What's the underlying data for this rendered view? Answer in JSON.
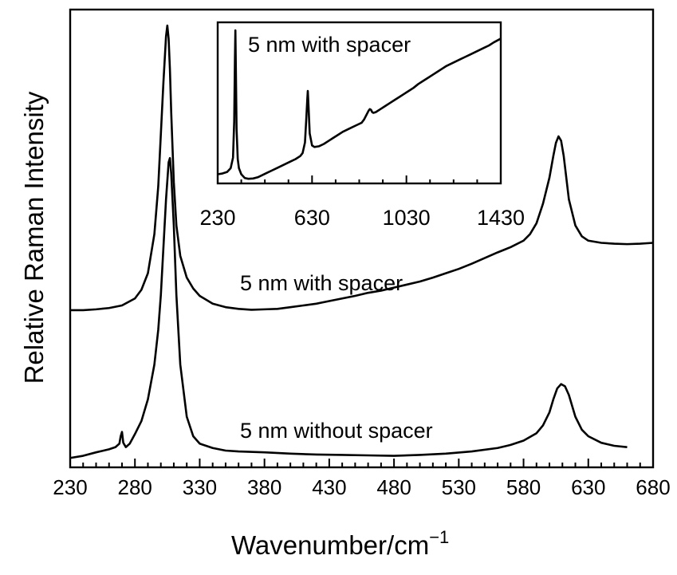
{
  "chart_data": [
    {
      "type": "line",
      "title": "",
      "xlabel": "Wavenumber/cm",
      "xlabel_sup": "−1",
      "ylabel": "Relative Raman Intensity",
      "xlim": [
        230,
        680
      ],
      "ylim": [
        0,
        1
      ],
      "y_tick_labels": false,
      "grid": false,
      "x_ticks": [
        230,
        280,
        330,
        380,
        430,
        480,
        530,
        580,
        630,
        680
      ],
      "x_tick_labels": [
        "230",
        "280",
        "330",
        "380",
        "430",
        "480",
        "530",
        "580",
        "630",
        "680"
      ],
      "series": [
        {
          "name": "5 nm with spacer",
          "x": [
            230,
            240,
            250,
            260,
            270,
            280,
            285,
            290,
            295,
            298,
            300,
            302,
            304,
            305,
            306,
            307,
            308,
            310,
            312,
            315,
            320,
            325,
            330,
            340,
            350,
            360,
            370,
            380,
            390,
            400,
            410,
            420,
            430,
            440,
            450,
            460,
            470,
            480,
            490,
            500,
            510,
            520,
            530,
            540,
            550,
            560,
            570,
            580,
            585,
            590,
            595,
            600,
            603,
            605,
            607,
            609,
            611,
            613,
            615,
            620,
            625,
            630,
            640,
            650,
            660,
            670,
            680
          ],
          "y": [
            0.345,
            0.345,
            0.347,
            0.35,
            0.356,
            0.372,
            0.392,
            0.43,
            0.52,
            0.63,
            0.75,
            0.87,
            0.975,
            1.0,
            0.97,
            0.9,
            0.8,
            0.64,
            0.54,
            0.47,
            0.42,
            0.395,
            0.378,
            0.36,
            0.352,
            0.348,
            0.346,
            0.347,
            0.348,
            0.352,
            0.356,
            0.36,
            0.366,
            0.372,
            0.378,
            0.385,
            0.39,
            0.397,
            0.404,
            0.411,
            0.42,
            0.43,
            0.44,
            0.452,
            0.465,
            0.478,
            0.49,
            0.505,
            0.52,
            0.545,
            0.59,
            0.65,
            0.7,
            0.73,
            0.745,
            0.735,
            0.7,
            0.65,
            0.6,
            0.54,
            0.515,
            0.505,
            0.5,
            0.498,
            0.497,
            0.498,
            0.5
          ]
        },
        {
          "name": "5 nm without spacer",
          "x": [
            230,
            240,
            250,
            260,
            265,
            268,
            269,
            270,
            271,
            273,
            276,
            280,
            285,
            290,
            295,
            298,
            300,
            302,
            304,
            306,
            307,
            308,
            310,
            312,
            315,
            320,
            325,
            330,
            340,
            350,
            360,
            380,
            400,
            420,
            440,
            460,
            480,
            500,
            520,
            540,
            560,
            570,
            580,
            590,
            595,
            600,
            603,
            606,
            609,
            612,
            615,
            618,
            620,
            625,
            630,
            640,
            650,
            660
          ],
          "y": [
            0.005,
            0.01,
            0.018,
            0.025,
            0.03,
            0.038,
            0.055,
            0.065,
            0.04,
            0.03,
            0.038,
            0.06,
            0.09,
            0.14,
            0.22,
            0.3,
            0.38,
            0.49,
            0.6,
            0.685,
            0.695,
            0.66,
            0.54,
            0.38,
            0.22,
            0.1,
            0.055,
            0.038,
            0.028,
            0.022,
            0.02,
            0.018,
            0.015,
            0.013,
            0.012,
            0.011,
            0.01,
            0.012,
            0.015,
            0.02,
            0.028,
            0.035,
            0.045,
            0.062,
            0.08,
            0.11,
            0.14,
            0.165,
            0.175,
            0.17,
            0.15,
            0.12,
            0.1,
            0.07,
            0.055,
            0.04,
            0.033,
            0.03
          ]
        }
      ],
      "annotations": [
        "5 nm with spacer",
        "5 nm without spacer"
      ]
    },
    {
      "type": "line",
      "title": "5 nm with spacer",
      "xlabel": "",
      "ylabel": "",
      "xlim": [
        230,
        1430
      ],
      "ylim": [
        0,
        1
      ],
      "y_tick_labels": false,
      "x_ticks": [
        230,
        630,
        1030,
        1430
      ],
      "x_tick_labels": [
        "230",
        "630",
        "1030",
        "1430"
      ],
      "series": [
        {
          "name": "5 nm with spacer",
          "x": [
            230,
            250,
            270,
            285,
            295,
            300,
            303,
            305,
            307,
            310,
            315,
            320,
            330,
            345,
            360,
            380,
            400,
            420,
            440,
            460,
            480,
            500,
            520,
            540,
            560,
            580,
            590,
            600,
            605,
            610,
            612,
            615,
            620,
            630,
            640,
            660,
            680,
            700,
            720,
            740,
            760,
            780,
            800,
            820,
            840,
            850,
            860,
            870,
            875,
            880,
            885,
            890,
            900,
            920,
            940,
            960,
            980,
            1000,
            1020,
            1040,
            1060,
            1080,
            1100,
            1120,
            1140,
            1160,
            1180,
            1200,
            1220,
            1240,
            1260,
            1280,
            1300,
            1320,
            1340,
            1360,
            1380,
            1400,
            1430
          ],
          "y": [
            0.05,
            0.055,
            0.065,
            0.09,
            0.16,
            0.4,
            0.8,
            1.0,
            0.75,
            0.35,
            0.15,
            0.09,
            0.05,
            0.025,
            0.02,
            0.022,
            0.03,
            0.045,
            0.06,
            0.075,
            0.09,
            0.105,
            0.12,
            0.135,
            0.15,
            0.17,
            0.19,
            0.26,
            0.4,
            0.55,
            0.6,
            0.5,
            0.32,
            0.24,
            0.23,
            0.235,
            0.25,
            0.27,
            0.29,
            0.31,
            0.33,
            0.345,
            0.36,
            0.375,
            0.39,
            0.41,
            0.44,
            0.47,
            0.48,
            0.475,
            0.46,
            0.455,
            0.46,
            0.48,
            0.5,
            0.52,
            0.54,
            0.56,
            0.58,
            0.6,
            0.62,
            0.645,
            0.665,
            0.685,
            0.705,
            0.725,
            0.745,
            0.765,
            0.78,
            0.795,
            0.81,
            0.825,
            0.84,
            0.855,
            0.87,
            0.885,
            0.9,
            0.92,
            0.945
          ]
        }
      ]
    }
  ]
}
